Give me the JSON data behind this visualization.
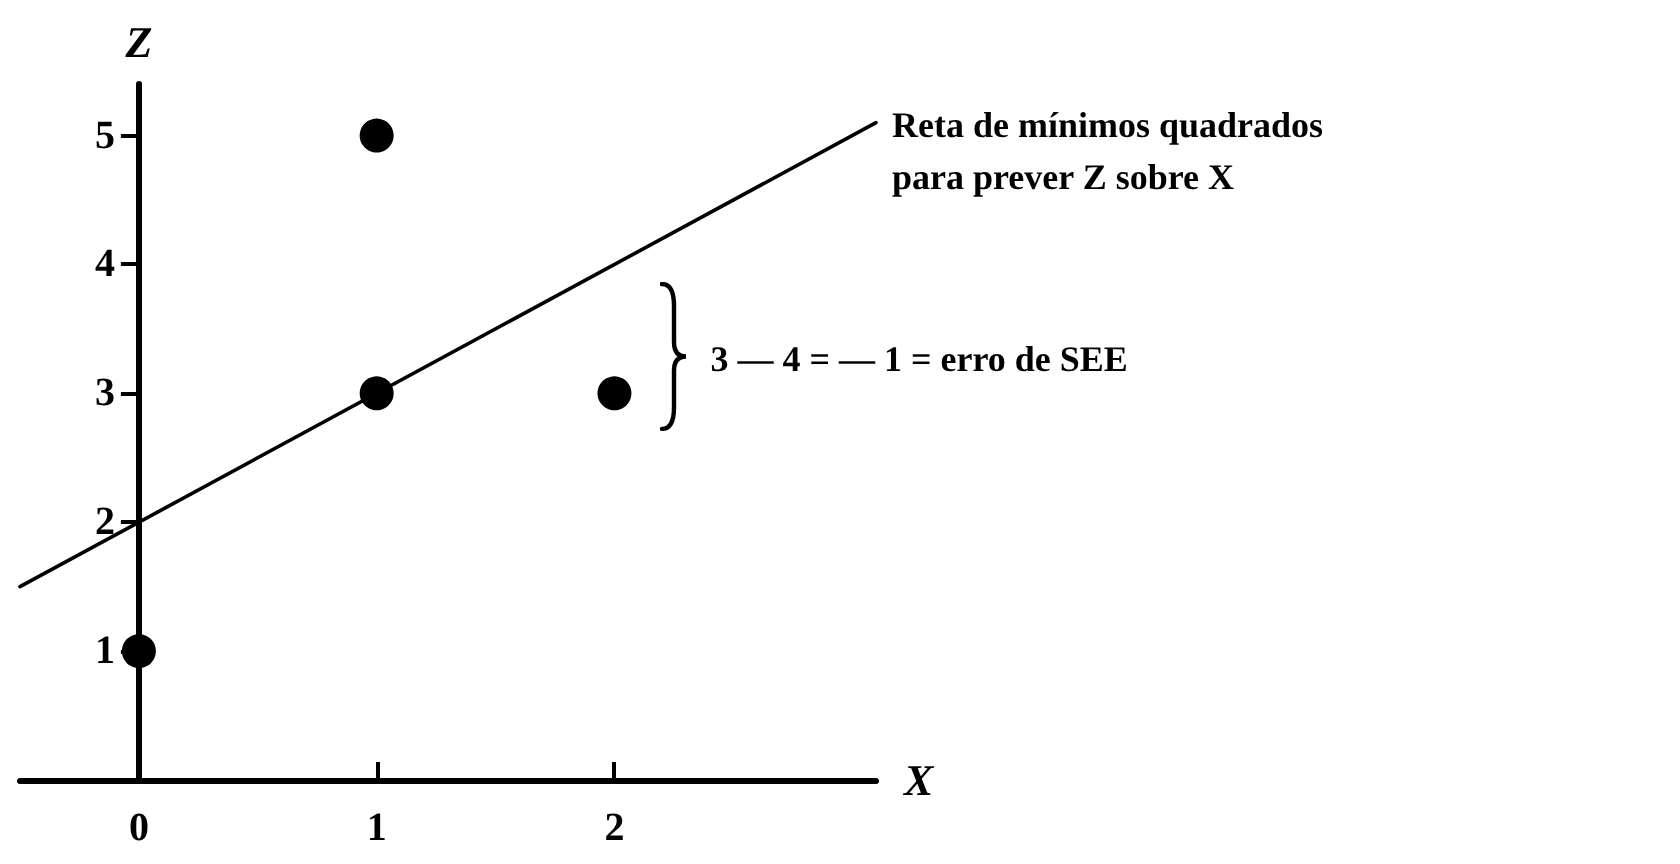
{
  "chart_data": {
    "type": "scatter",
    "xlabel": "X",
    "ylabel": "Z",
    "xlim": [
      -0.5,
      3.1
    ],
    "xticks": [
      0,
      1,
      2
    ],
    "ylim": [
      0,
      5.4
    ],
    "yticks": [
      1,
      2,
      3,
      4,
      5
    ],
    "grid": false,
    "marker": "circle",
    "series": [
      {
        "color": "#000000",
        "x": [
          0,
          1,
          1,
          2
        ],
        "values": [
          1,
          3,
          5,
          3
        ]
      },
      {
        "type": "line",
        "name": "Reta de mínimos quadrados para prever Z sobre X",
        "color": "#000000",
        "x": [
          -0.5,
          3.1
        ],
        "values": [
          1.5,
          5.1
        ],
        "marker": "none",
        "line_style": "solid"
      }
    ],
    "annotations": [
      {
        "text": "3 — 4 = — 1 = erro de SEE",
        "x": 2,
        "y": 3
      }
    ]
  }
}
